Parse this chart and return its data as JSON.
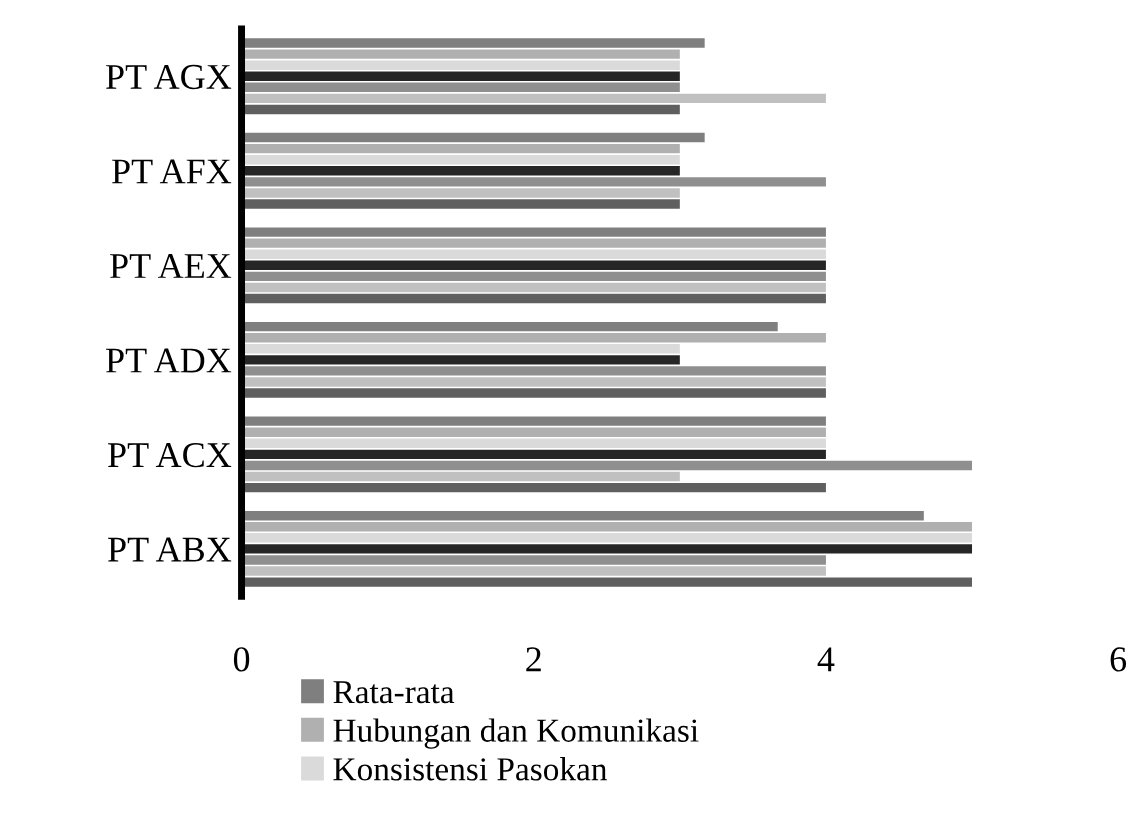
{
  "chart_data": {
    "type": "bar",
    "orientation": "horizontal",
    "categories": [
      "PT AGX",
      "PT AFX",
      "PT AEX",
      "PT ADX",
      "PT ACX",
      "PT ABX"
    ],
    "series": [
      {
        "name": "Rata-rata",
        "color": "#7f7f7f",
        "values": [
          3.17,
          3.17,
          4,
          3.67,
          4,
          4.67
        ]
      },
      {
        "name": "Hubungan dan Komunikasi",
        "color": "#b0b0b0",
        "values": [
          3,
          3,
          4,
          4,
          4,
          5
        ]
      },
      {
        "name": "Konsistensi Pasokan",
        "color": "#dadada",
        "values": [
          3,
          3,
          4,
          3,
          4,
          5
        ]
      },
      {
        "color": "#262626",
        "values": [
          3,
          3,
          4,
          3,
          4,
          5
        ]
      },
      {
        "color": "#8f8f8f",
        "values": [
          3,
          4,
          4,
          4,
          5,
          4
        ]
      },
      {
        "color": "#c0c0c0",
        "values": [
          4,
          3,
          4,
          4,
          3,
          4
        ]
      },
      {
        "color": "#5f5f5f",
        "values": [
          3,
          3,
          4,
          4,
          4,
          5
        ]
      }
    ],
    "xlim": [
      0,
      6
    ],
    "xticks": [
      0,
      2,
      4,
      6
    ],
    "grid": false,
    "legend": "bottom"
  }
}
